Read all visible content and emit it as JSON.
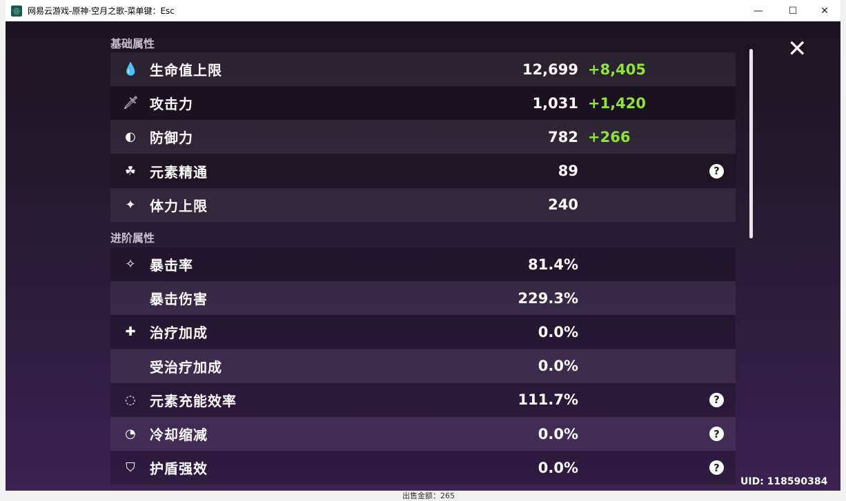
{
  "window": {
    "title": "网易云游戏-原神·空月之歌-菜单键：Esc",
    "minimize": "—",
    "maximize": "☐",
    "close": "✕"
  },
  "sections": {
    "basic": "基础属性",
    "advanced": "进阶属性"
  },
  "basic_stats": [
    {
      "icon": "hp-drop-icon",
      "glyph": "💧",
      "label": "生命值上限",
      "value": "12,699",
      "bonus": "+8,405"
    },
    {
      "icon": "sword-icon",
      "glyph": "🗡",
      "label": "攻击力",
      "value": "1,031",
      "bonus": "+1,420"
    },
    {
      "icon": "shield-icon",
      "glyph": "◐",
      "label": "防御力",
      "value": "782",
      "bonus": "+266"
    },
    {
      "icon": "elemental-mastery-icon",
      "glyph": "☘",
      "label": "元素精通",
      "value": "89",
      "help": "?"
    },
    {
      "icon": "stamina-icon",
      "glyph": "✦",
      "label": "体力上限",
      "value": "240"
    }
  ],
  "advanced_stats": [
    {
      "icon": "crit-rate-icon",
      "glyph": "✧",
      "label": "暴击率",
      "value": "81.4%"
    },
    {
      "label": "暴击伤害",
      "value": "229.3%"
    },
    {
      "icon": "healing-plus-icon",
      "glyph": "✚",
      "label": "治疗加成",
      "value": "0.0%"
    },
    {
      "label": "受治疗加成",
      "value": "0.0%"
    },
    {
      "icon": "energy-recharge-icon",
      "glyph": "◌",
      "label": "元素充能效率",
      "value": "111.7%",
      "help": "?"
    },
    {
      "icon": "cooldown-icon",
      "glyph": "◔",
      "label": "冷却缩减",
      "value": "0.0%",
      "help": "?"
    },
    {
      "icon": "shield-strength-icon",
      "glyph": "⛉",
      "label": "护盾强效",
      "value": "0.0%",
      "help": "?"
    }
  ],
  "close_label": "✕",
  "uid": "UID: 118590384",
  "background_text": "出售金额：265"
}
